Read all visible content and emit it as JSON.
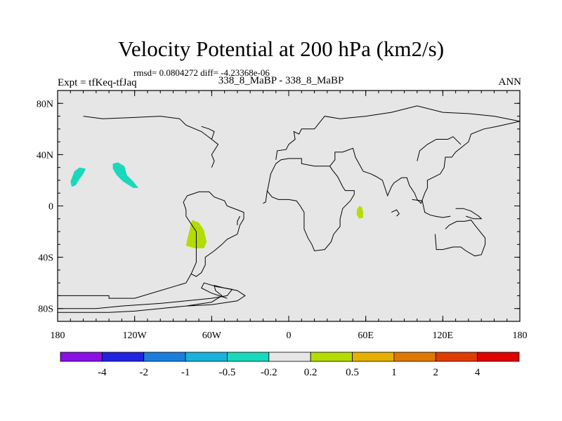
{
  "header": {
    "title": "Velocity Potential at 200 hPa (km2/s)",
    "rmsd_line": "rmsd= 0.0804272 diff= -4.23368e-06",
    "subtitle": "338_8_MaBP - 338_8_MaBP",
    "left_label": "Expt = tfKeq-tfJaq",
    "right_label": "ANN"
  },
  "chart_data": {
    "type": "contour_map",
    "title": "Velocity Potential at 200 hPa (km2/s)",
    "projection": "cylindrical equidistant",
    "xlim": [
      -180,
      180
    ],
    "ylim": [
      -90,
      90
    ],
    "x_ticks": [
      {
        "value": -180,
        "label": "180"
      },
      {
        "value": -120,
        "label": "120W"
      },
      {
        "value": -60,
        "label": "60W"
      },
      {
        "value": 0,
        "label": "0"
      },
      {
        "value": 60,
        "label": "60E"
      },
      {
        "value": 120,
        "label": "120E"
      },
      {
        "value": 180,
        "label": "180"
      }
    ],
    "y_ticks": [
      {
        "value": 80,
        "label": "80N"
      },
      {
        "value": 40,
        "label": "40N"
      },
      {
        "value": 0,
        "label": "0"
      },
      {
        "value": -40,
        "label": "40S"
      },
      {
        "value": -80,
        "label": "80S"
      }
    ],
    "background_color": "#e6e6e6",
    "colorbar": {
      "labels": [
        "-4",
        "-2",
        "-1",
        "-0.5",
        "-0.2",
        "0.2",
        "0.5",
        "1",
        "2",
        "4"
      ],
      "colors": [
        "#8a10e6",
        "#2222e0",
        "#1a7fdc",
        "#18b2dc",
        "#1ad8bc",
        "#e6e6e6",
        "#b4dc00",
        "#e6b000",
        "#e07800",
        "#e03c00",
        "#e00000"
      ]
    },
    "shaded_regions": [
      {
        "level_range": "-0.5 to -0.2",
        "color": "#1ad8bc",
        "polygon": [
          [
            -167,
            27
          ],
          [
            -163,
            30
          ],
          [
            -158,
            29
          ],
          [
            -160,
            25
          ],
          [
            -163,
            21
          ],
          [
            -166,
            16
          ],
          [
            -169,
            15
          ],
          [
            -170,
            19
          ],
          [
            -168,
            24
          ]
        ]
      },
      {
        "level_range": "-0.5 to -0.2",
        "color": "#1ad8bc",
        "polygon": [
          [
            -137,
            33
          ],
          [
            -133,
            34
          ],
          [
            -128,
            31
          ],
          [
            -126,
            24
          ],
          [
            -121,
            19
          ],
          [
            -117,
            14
          ],
          [
            -121,
            14
          ],
          [
            -129,
            19
          ],
          [
            -134,
            24
          ],
          [
            -137,
            29
          ]
        ]
      },
      {
        "level_range": "0.2 to 0.5",
        "color": "#b4dc00",
        "polygon": [
          [
            -75,
            -11
          ],
          [
            -70,
            -13
          ],
          [
            -66,
            -19
          ],
          [
            -64,
            -28
          ],
          [
            -66,
            -33
          ],
          [
            -73,
            -33
          ],
          [
            -80,
            -31
          ],
          [
            -79,
            -26
          ],
          [
            -77,
            -18
          ],
          [
            -76,
            -13
          ]
        ]
      },
      {
        "level_range": "0.2 to 0.5",
        "color": "#b4dc00",
        "polygon": [
          [
            55,
            0
          ],
          [
            57,
            -1
          ],
          [
            58,
            -5
          ],
          [
            58,
            -9
          ],
          [
            55,
            -10
          ],
          [
            53,
            -7
          ],
          [
            53,
            -3
          ]
        ]
      }
    ],
    "continent_outlines": [
      [
        [
          -180,
          -70
        ],
        [
          -140,
          -70
        ],
        [
          -140,
          -72
        ],
        [
          -120,
          -72
        ],
        [
          -80,
          -60
        ],
        [
          -76,
          -53
        ],
        [
          -72,
          -44
        ],
        [
          -72,
          -30
        ],
        [
          -72,
          -20
        ],
        [
          -80,
          -8
        ],
        [
          -80,
          -3
        ],
        [
          -82,
          3
        ],
        [
          -79,
          8
        ],
        [
          -76,
          9
        ],
        [
          -70,
          11
        ],
        [
          -62,
          11
        ],
        [
          -58,
          7
        ],
        [
          -50,
          4
        ],
        [
          -48,
          0
        ],
        [
          -40,
          -3
        ],
        [
          -35,
          -5
        ],
        [
          -35,
          -10
        ],
        [
          -38,
          -15
        ],
        [
          -40,
          -22
        ],
        [
          -48,
          -26
        ],
        [
          -52,
          -30
        ],
        [
          -58,
          -35
        ],
        [
          -65,
          -40
        ],
        [
          -65,
          -46
        ],
        [
          -68,
          -52
        ],
        [
          -72,
          -55
        ],
        [
          -76,
          -53
        ]
      ],
      [
        [
          -180,
          -83
        ],
        [
          -140,
          -83
        ],
        [
          -120,
          -82
        ],
        [
          -100,
          -80
        ],
        [
          -80,
          -78
        ],
        [
          -60,
          -77
        ],
        [
          -40,
          -74
        ],
        [
          -34,
          -70
        ],
        [
          -40,
          -66
        ],
        [
          -50,
          -64
        ],
        [
          -58,
          -62
        ],
        [
          -57,
          -66
        ],
        [
          -52,
          -70
        ],
        [
          -60,
          -75
        ],
        [
          -80,
          -78
        ]
      ],
      [
        [
          -178,
          -80
        ],
        [
          -150,
          -80
        ],
        [
          -130,
          -78
        ],
        [
          -100,
          -76
        ],
        [
          -80,
          -74
        ],
        [
          -60,
          -72
        ],
        [
          -48,
          -70
        ],
        [
          -44,
          -65
        ],
        [
          -56,
          -63
        ],
        [
          -66,
          -60
        ],
        [
          -68,
          -64
        ],
        [
          -60,
          -68
        ],
        [
          -48,
          -72
        ]
      ],
      [
        [
          -20,
          2
        ],
        [
          -18,
          3
        ],
        [
          -17,
          10
        ],
        [
          -16,
          15
        ],
        [
          -14,
          25
        ],
        [
          -10,
          33
        ],
        [
          -6,
          36
        ],
        [
          0,
          37
        ],
        [
          10,
          37
        ],
        [
          10,
          33
        ],
        [
          20,
          31
        ],
        [
          32,
          31
        ],
        [
          34,
          28
        ],
        [
          38,
          23
        ],
        [
          42,
          15
        ],
        [
          44,
          12
        ],
        [
          51,
          12
        ],
        [
          51,
          9
        ],
        [
          48,
          4
        ],
        [
          42,
          -2
        ],
        [
          40,
          -10
        ],
        [
          40,
          -16
        ],
        [
          35,
          -22
        ],
        [
          33,
          -28
        ],
        [
          28,
          -34
        ],
        [
          20,
          -35
        ],
        [
          18,
          -30
        ],
        [
          15,
          -25
        ],
        [
          12,
          -18
        ],
        [
          12,
          -10
        ],
        [
          12,
          -5
        ],
        [
          9,
          0
        ],
        [
          6,
          4
        ],
        [
          0,
          5
        ],
        [
          -8,
          5
        ],
        [
          -13,
          7
        ],
        [
          -17,
          12
        ]
      ],
      [
        [
          -10,
          36
        ],
        [
          -9,
          43
        ],
        [
          -2,
          44
        ],
        [
          0,
          48
        ],
        [
          5,
          52
        ],
        [
          4,
          58
        ],
        [
          8,
          56
        ],
        [
          10,
          60
        ],
        [
          20,
          60
        ],
        [
          28,
          70
        ],
        [
          40,
          68
        ],
        [
          60,
          70
        ],
        [
          80,
          73
        ],
        [
          100,
          78
        ],
        [
          120,
          73
        ],
        [
          140,
          72
        ],
        [
          160,
          70
        ],
        [
          180,
          66
        ]
      ],
      [
        [
          32,
          31
        ],
        [
          36,
          36
        ],
        [
          36,
          42
        ],
        [
          42,
          42
        ],
        [
          50,
          45
        ],
        [
          52,
          38
        ],
        [
          58,
          27
        ],
        [
          64,
          25
        ],
        [
          68,
          23
        ],
        [
          73,
          20
        ],
        [
          77,
          8
        ],
        [
          80,
          15
        ],
        [
          82,
          18
        ],
        [
          88,
          22
        ],
        [
          92,
          22
        ],
        [
          94,
          16
        ],
        [
          98,
          10
        ],
        [
          100,
          5
        ],
        [
          103,
          2
        ],
        [
          106,
          10
        ],
        [
          108,
          14
        ],
        [
          108,
          20
        ],
        [
          112,
          22
        ],
        [
          118,
          25
        ],
        [
          121,
          30
        ],
        [
          122,
          38
        ],
        [
          127,
          38
        ],
        [
          130,
          42
        ],
        [
          135,
          46
        ],
        [
          140,
          50
        ],
        [
          142,
          56
        ],
        [
          152,
          60
        ],
        [
          162,
          62
        ],
        [
          180,
          66
        ]
      ],
      [
        [
          -60,
          30
        ],
        [
          -58,
          35
        ],
        [
          -60,
          40
        ],
        [
          -55,
          48
        ],
        [
          -60,
          52
        ],
        [
          -58,
          58
        ],
        [
          -62,
          60
        ],
        [
          -68,
          62
        ]
      ],
      [
        [
          84,
          -8
        ],
        [
          86,
          -6
        ],
        [
          84,
          -3
        ],
        [
          80,
          -5
        ]
      ],
      [
        [
          114,
          -22
        ],
        [
          115,
          -34
        ],
        [
          120,
          -34
        ],
        [
          128,
          -32
        ],
        [
          134,
          -32
        ],
        [
          138,
          -35
        ],
        [
          145,
          -39
        ],
        [
          150,
          -38
        ],
        [
          153,
          -30
        ],
        [
          153,
          -25
        ],
        [
          149,
          -20
        ],
        [
          145,
          -15
        ],
        [
          142,
          -11
        ],
        [
          137,
          -12
        ],
        [
          131,
          -12
        ],
        [
          125,
          -15
        ],
        [
          122,
          -18
        ]
      ],
      [
        [
          -40,
          -15
        ],
        [
          -40,
          -12
        ],
        [
          -38,
          -8
        ]
      ],
      [
        [
          100,
          35
        ],
        [
          102,
          43
        ],
        [
          108,
          48
        ],
        [
          115,
          52
        ],
        [
          124,
          52
        ],
        [
          128,
          54
        ],
        [
          134,
          48
        ]
      ],
      [
        [
          -160,
          70
        ],
        [
          -145,
          68
        ],
        [
          -120,
          69
        ],
        [
          -100,
          70
        ],
        [
          -85,
          68
        ],
        [
          -80,
          63
        ],
        [
          -68,
          58
        ],
        [
          -60,
          52
        ]
      ],
      [
        [
          96,
          5
        ],
        [
          104,
          4
        ],
        [
          106,
          -5
        ],
        [
          110,
          -7
        ],
        [
          114,
          -8
        ],
        [
          120,
          -9
        ],
        [
          126,
          -8
        ]
      ],
      [
        [
          130,
          -2
        ],
        [
          136,
          -2
        ],
        [
          142,
          -4
        ],
        [
          148,
          -8
        ],
        [
          150,
          -10
        ],
        [
          144,
          -10
        ],
        [
          138,
          -8
        ]
      ]
    ]
  }
}
